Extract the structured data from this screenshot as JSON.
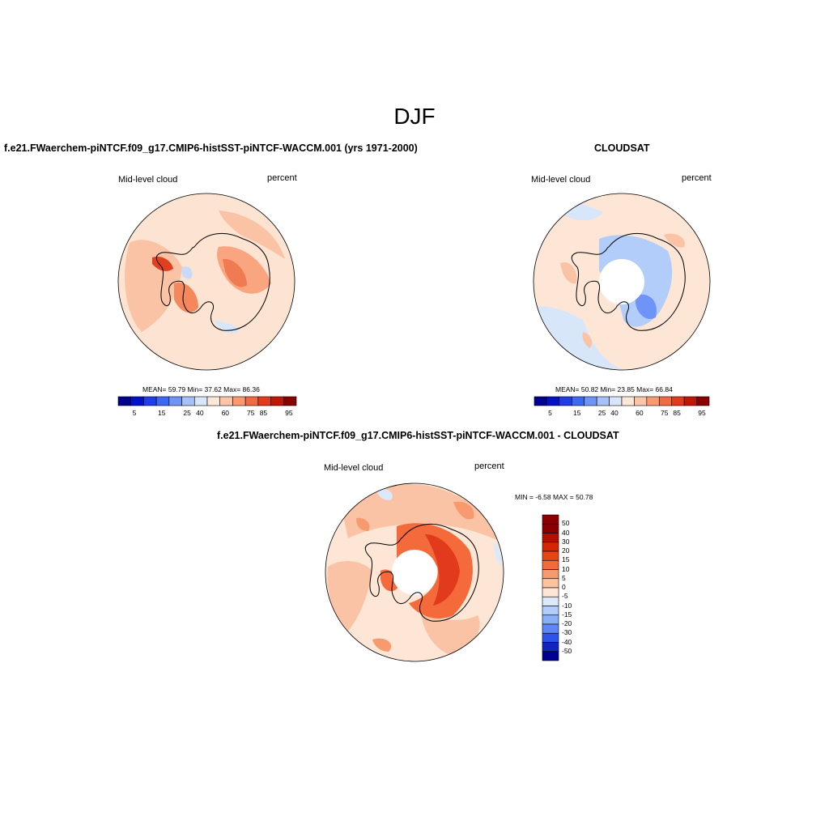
{
  "page_title": "DJF",
  "panels": [
    {
      "title": "f.e21.FWaerchem-piNTCF.f09_g17.CMIP6-histSST-piNTCF-WACCM.001 (yrs 1971-2000)",
      "left_label": "Mid-level cloud",
      "right_label": "percent",
      "stats": "MEAN=  59.79  Min=  37.62  Max=  86.36",
      "colorbar_labels": [
        "5",
        "15",
        "25",
        "40",
        "60",
        "75",
        "85",
        "95"
      ]
    },
    {
      "title": "CLOUDSAT",
      "left_label": "Mid-level cloud",
      "right_label": "percent",
      "stats": "MEAN=  50.82  Min=  23.85  Max=  66.84",
      "colorbar_labels": [
        "5",
        "15",
        "25",
        "40",
        "60",
        "75",
        "85",
        "95"
      ]
    },
    {
      "title": "f.e21.FWaerchem-piNTCF.f09_g17.CMIP6-histSST-piNTCF-WACCM.001 - CLOUDSAT",
      "left_label": "Mid-level cloud",
      "right_label": "percent",
      "stats": "MIN =  -6.58 MAX =  50.78",
      "colorbar_labels": [
        "50",
        "40",
        "30",
        "20",
        "15",
        "10",
        "5",
        "0",
        "-5",
        "-10",
        "-15",
        "-20",
        "-30",
        "-40",
        "-50"
      ]
    }
  ],
  "colors": {
    "abs_scale": [
      "#000090",
      "#0011c8",
      "#1f3ee8",
      "#3f67f6",
      "#6f94f8",
      "#a6c0f8",
      "#d8e6fa",
      "#fde8d8",
      "#fbc6a8",
      "#f89a72",
      "#f26a43",
      "#e23a1c",
      "#bf1707",
      "#8a0000"
    ],
    "diff_scale": [
      "#8a0000",
      "#b30e00",
      "#d52505",
      "#ea4514",
      "#f46a3a",
      "#f79a6e",
      "#fbc3a2",
      "#fde6d6",
      "#dce9fb",
      "#b3cdfa",
      "#8aaef7",
      "#5e86f4",
      "#2e53ea",
      "#0e25c2",
      "#000090"
    ],
    "map_bg": "#fde6d6",
    "hole": "#ffffff",
    "coast": "#000000"
  }
}
